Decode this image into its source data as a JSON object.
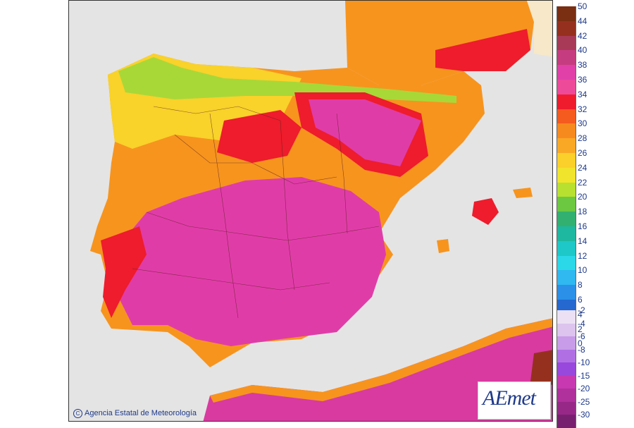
{
  "map": {
    "copyright_symbol": "C",
    "copyright_text": "Agencia Estatal de Meteorología",
    "logo_text": "AEmet"
  },
  "legend": {
    "positive": [
      {
        "label": "50",
        "color": "#7a2e12"
      },
      {
        "label": "44",
        "color": "#96301e"
      },
      {
        "label": "42",
        "color": "#a83a58"
      },
      {
        "label": "40",
        "color": "#c63c80"
      },
      {
        "label": "38",
        "color": "#e040a8"
      },
      {
        "label": "36",
        "color": "#ee4a9a"
      },
      {
        "label": "34",
        "color": "#ee1c2c"
      },
      {
        "label": "32",
        "color": "#f55a1e"
      },
      {
        "label": "30",
        "color": "#f78a1e"
      },
      {
        "label": "28",
        "color": "#f9a826"
      },
      {
        "label": "26",
        "color": "#fbd02a"
      },
      {
        "label": "24",
        "color": "#f0e42c"
      },
      {
        "label": "22",
        "color": "#b8e030"
      },
      {
        "label": "20",
        "color": "#6cc840"
      },
      {
        "label": "18",
        "color": "#32b070"
      },
      {
        "label": "16",
        "color": "#1eb8a0"
      },
      {
        "label": "14",
        "color": "#1ec8c8"
      },
      {
        "label": "12",
        "color": "#2ad8e8"
      },
      {
        "label": "10",
        "color": "#30b8f0"
      },
      {
        "label": "8",
        "color": "#2a90e8"
      },
      {
        "label": "6",
        "color": "#2468d0"
      },
      {
        "label": "4",
        "color": "#1c48b0"
      },
      {
        "label": "2",
        "color": "#142c8c"
      },
      {
        "label": "0",
        "color": "#0c1868"
      }
    ],
    "negative": [
      {
        "label": "-2",
        "color": "#ece0f4"
      },
      {
        "label": "-4",
        "color": "#dcc4ee"
      },
      {
        "label": "-6",
        "color": "#c89ce8"
      },
      {
        "label": "-8",
        "color": "#b070e4"
      },
      {
        "label": "-10",
        "color": "#9848dc"
      },
      {
        "label": "-15",
        "color": "#c838b0"
      },
      {
        "label": "-20",
        "color": "#b0309c"
      },
      {
        "label": "-25",
        "color": "#982888"
      },
      {
        "label": "-30",
        "color": "#782070"
      }
    ]
  }
}
